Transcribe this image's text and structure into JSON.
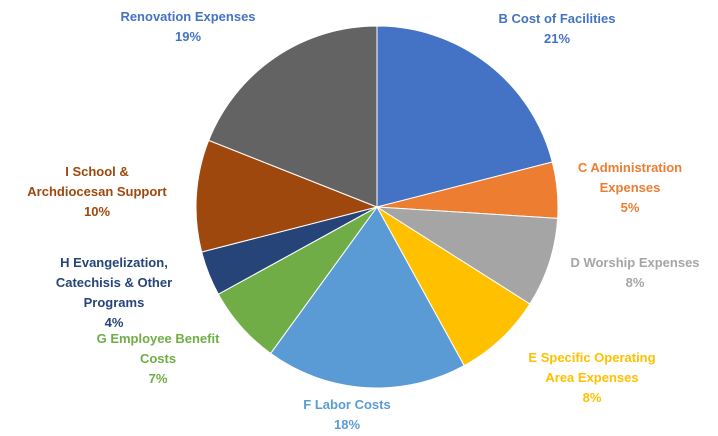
{
  "chart_data": {
    "type": "pie",
    "categories": [
      "B Cost of Facilities",
      "C Administration Expenses",
      "D Worship Expenses",
      "E Specific Operating Area Expenses",
      "F Labor Costs",
      "G Employee Benefit Costs",
      "H Evangelization, Catechisis & Other Programs",
      "I School & Archdiocesan Support",
      "Renovation Expenses"
    ],
    "values": [
      21,
      5,
      8,
      8,
      18,
      7,
      4,
      10,
      19
    ],
    "value_labels": [
      "21%",
      "5%",
      "8%",
      "8%",
      "18%",
      "7%",
      "4%",
      "10%",
      "19%"
    ],
    "colors": [
      "#4472c4",
      "#ed7d31",
      "#a5a5a5",
      "#ffc000",
      "#5b9bd5",
      "#70ad47",
      "#264478",
      "#9e480e",
      "#636363"
    ],
    "label_colors": [
      "#4472c4",
      "#ed7d31",
      "#a5a5a5",
      "#ffc000",
      "#5b9bd5",
      "#70ad47",
      "#264478",
      "#9e480e",
      "#4472c4"
    ]
  }
}
